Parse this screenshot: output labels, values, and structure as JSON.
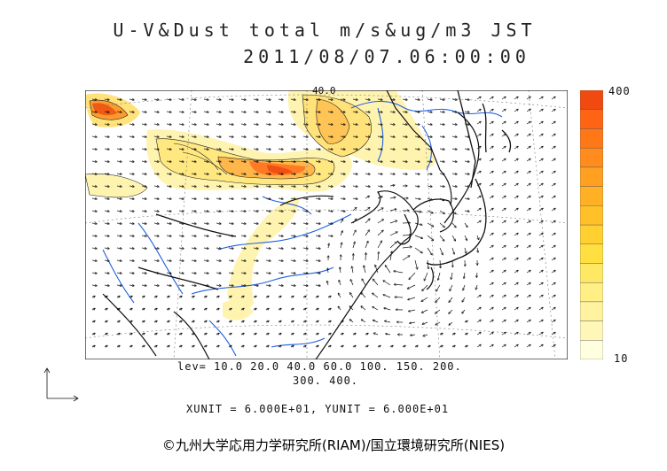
{
  "title_line1": "U-V&Dust total m/s&ug/m3 JST",
  "title_line2": "2011/08/07.06:00:00",
  "colorbar": {
    "max_label": "400",
    "min_label": "10",
    "colors": [
      "#ffffe0",
      "#fff7b8",
      "#fff3a0",
      "#ffef85",
      "#ffe964",
      "#ffe040",
      "#ffd030",
      "#ffc02a",
      "#ffb024",
      "#ffa020",
      "#ff8c1c",
      "#ff7818",
      "#ff6414",
      "#f04a10"
    ]
  },
  "levels_line1": "lev= 10.0 20.0 40.0 60.0 100. 150. 200.",
  "levels_line2": "300. 400.",
  "unit_text": "XUNIT = 6.000E+01, YUNIT = 6.000E+01",
  "contour_label": "40.0",
  "credit": "©九州大学応用力学研究所(RIAM)/国立環境研究所(NIES)"
}
